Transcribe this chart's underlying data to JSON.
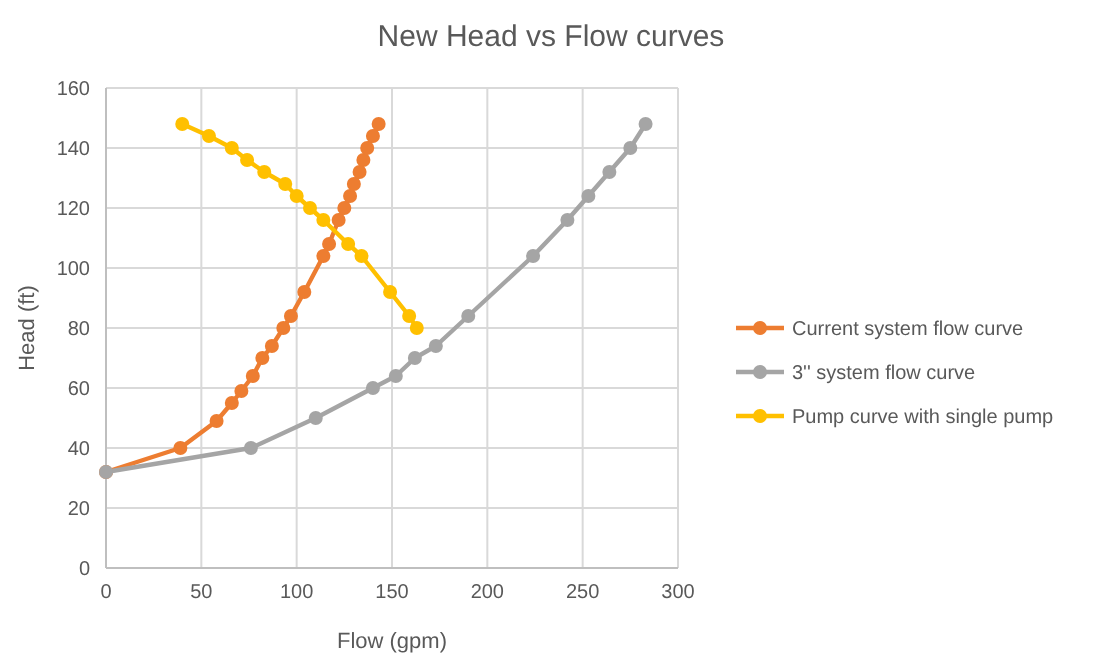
{
  "chart_data": {
    "type": "line",
    "title": "New Head vs Flow curves",
    "xlabel": "Flow (gpm)",
    "ylabel": "Head  (ft)",
    "xlim": [
      0,
      300
    ],
    "xticks": [
      0,
      50,
      100,
      150,
      200,
      250,
      300
    ],
    "ylim": [
      0,
      160
    ],
    "yticks": [
      0,
      20,
      40,
      60,
      80,
      100,
      120,
      140,
      160
    ],
    "grid": true,
    "legend": "right",
    "marker": "circle",
    "series": [
      {
        "name": "Current system flow curve",
        "color": "#ed7d31",
        "x": [
          0,
          39,
          58,
          66,
          71,
          77,
          82,
          87,
          93,
          97,
          104,
          114,
          117,
          122,
          125,
          128,
          130,
          133,
          135,
          137,
          140,
          143
        ],
        "values": [
          32,
          40,
          49,
          55,
          59,
          64,
          70,
          74,
          80,
          84,
          92,
          104,
          108,
          116,
          120,
          124,
          128,
          132,
          136,
          140,
          144,
          148
        ]
      },
      {
        "name": "3'' system flow curve",
        "color": "#a5a5a5",
        "x": [
          0,
          76,
          110,
          140,
          152,
          162,
          173,
          190,
          224,
          242,
          253,
          264,
          275,
          283
        ],
        "values": [
          32,
          40,
          50,
          60,
          64,
          70,
          74,
          84,
          104,
          116,
          124,
          132,
          140,
          148
        ]
      },
      {
        "name": "Pump curve with single pump",
        "color": "#ffc000",
        "x": [
          40,
          54,
          66,
          74,
          83,
          94,
          100,
          107,
          114,
          127,
          134,
          149,
          159,
          163
        ],
        "values": [
          148,
          144,
          140,
          136,
          132,
          128,
          124,
          120,
          116,
          108,
          104,
          92,
          84,
          80
        ]
      }
    ]
  }
}
